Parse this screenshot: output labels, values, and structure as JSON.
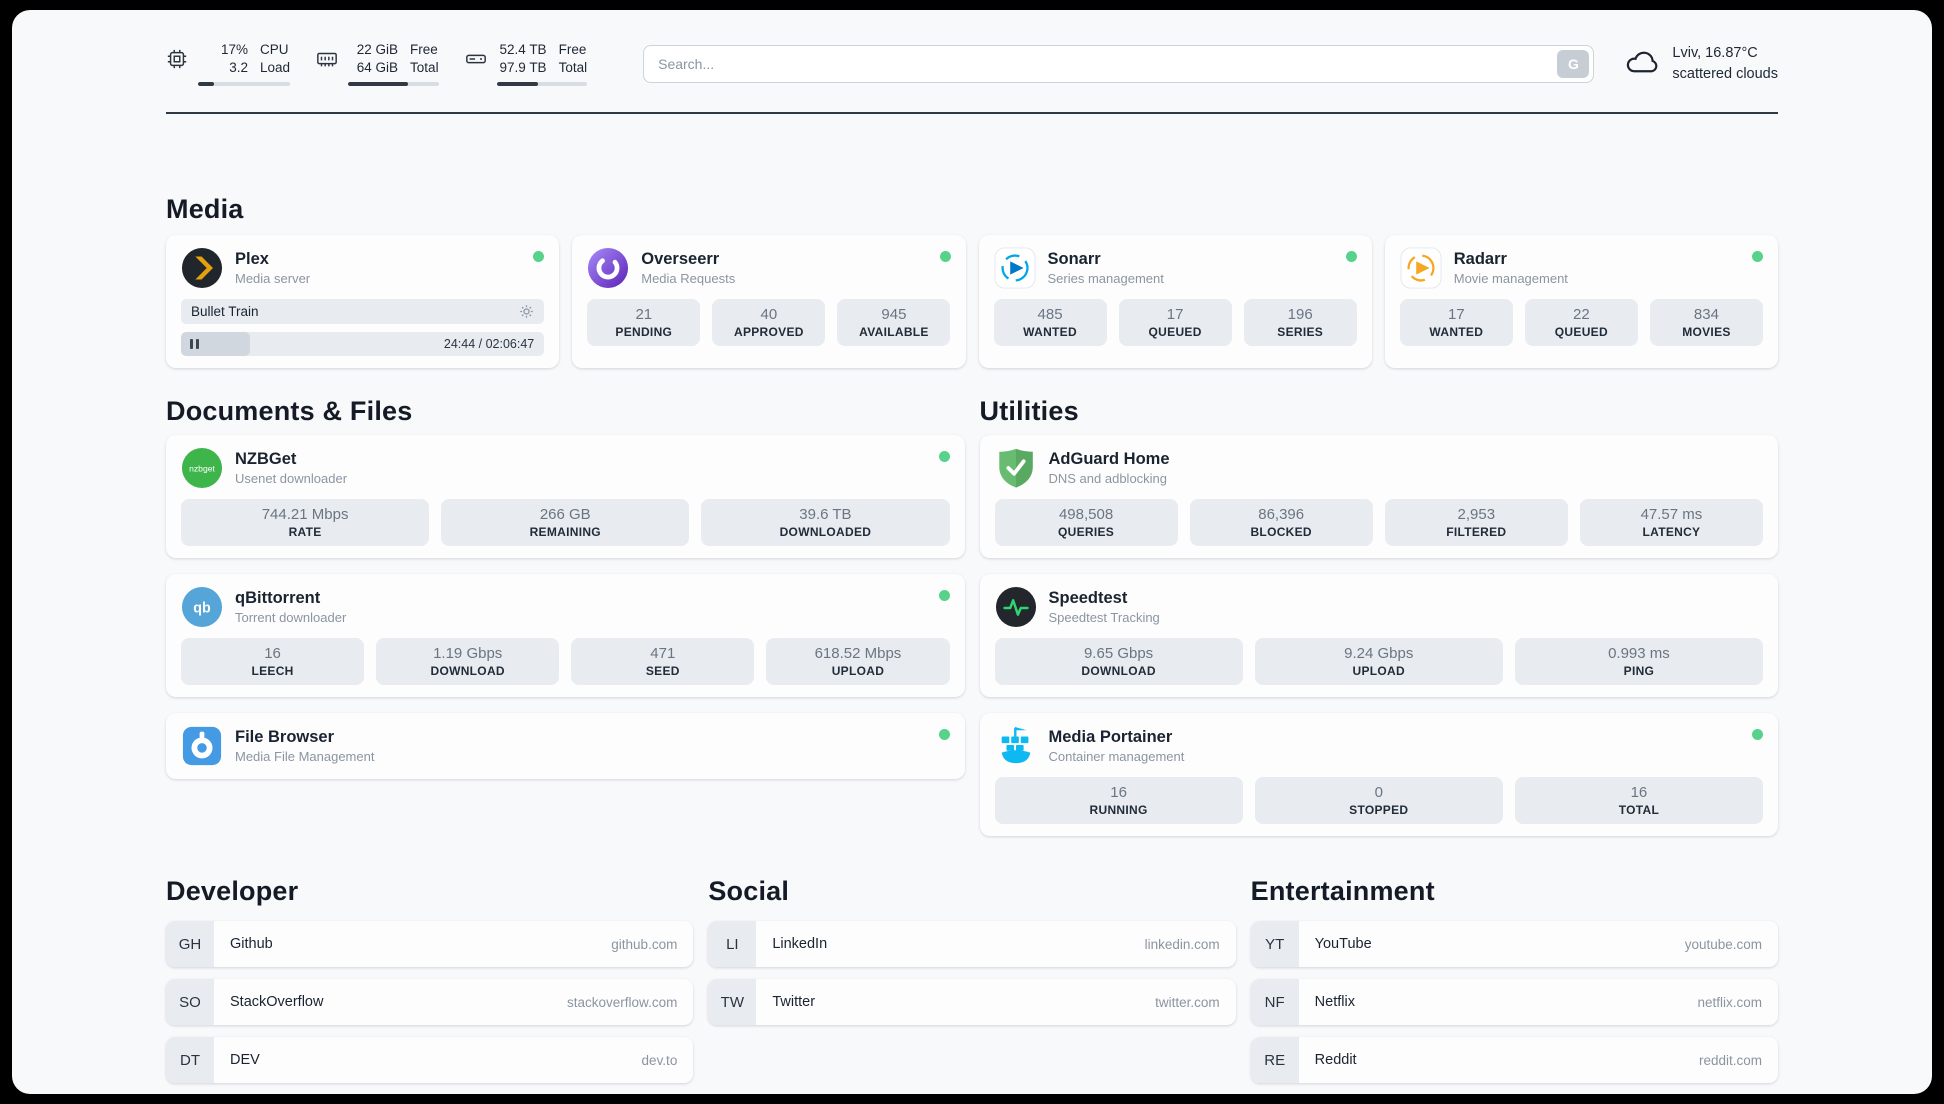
{
  "header": {
    "cpu": {
      "values": [
        "17%",
        "3.2"
      ],
      "labels": [
        "CPU",
        "Load"
      ],
      "percent": 17
    },
    "ram": {
      "values": [
        "22 GiB",
        "64 GiB"
      ],
      "labels": [
        "Free",
        "Total"
      ],
      "percent": 66
    },
    "disk": {
      "values": [
        "52.4 TB",
        "97.9 TB"
      ],
      "labels": [
        "Free",
        "Total"
      ],
      "percent": 46
    },
    "search": {
      "placeholder": "Search...",
      "button_label": "G"
    },
    "weather": {
      "location": "Lviv, 16.87°C",
      "condition": "scattered clouds"
    }
  },
  "sections": {
    "media": {
      "title": "Media",
      "apps": [
        {
          "name": "Plex",
          "subtitle": "Media server",
          "online": true,
          "now_playing": "Bullet Train",
          "time": "24:44 / 02:06:47",
          "progress_percent": 19
        },
        {
          "name": "Overseerr",
          "subtitle": "Media Requests",
          "online": true,
          "stats": [
            {
              "value": "21",
              "label": "PENDING"
            },
            {
              "value": "40",
              "label": "APPROVED"
            },
            {
              "value": "945",
              "label": "AVAILABLE"
            }
          ]
        },
        {
          "name": "Sonarr",
          "subtitle": "Series management",
          "online": true,
          "stats": [
            {
              "value": "485",
              "label": "WANTED"
            },
            {
              "value": "17",
              "label": "QUEUED"
            },
            {
              "value": "196",
              "label": "SERIES"
            }
          ]
        },
        {
          "name": "Radarr",
          "subtitle": "Movie management",
          "online": true,
          "stats": [
            {
              "value": "17",
              "label": "WANTED"
            },
            {
              "value": "22",
              "label": "QUEUED"
            },
            {
              "value": "834",
              "label": "MOVIES"
            }
          ]
        }
      ]
    },
    "documents": {
      "title": "Documents & Files",
      "apps": [
        {
          "name": "NZBGet",
          "subtitle": "Usenet downloader",
          "online": true,
          "stats": [
            {
              "value": "744.21 Mbps",
              "label": "RATE"
            },
            {
              "value": "266 GB",
              "label": "REMAINING"
            },
            {
              "value": "39.6 TB",
              "label": "DOWNLOADED"
            }
          ]
        },
        {
          "name": "qBittorrent",
          "subtitle": "Torrent downloader",
          "online": true,
          "stats": [
            {
              "value": "16",
              "label": "LEECH"
            },
            {
              "value": "1.19 Gbps",
              "label": "DOWNLOAD"
            },
            {
              "value": "471",
              "label": "SEED"
            },
            {
              "value": "618.52 Mbps",
              "label": "UPLOAD"
            }
          ]
        },
        {
          "name": "File Browser",
          "subtitle": "Media File Management",
          "online": true
        }
      ]
    },
    "utilities": {
      "title": "Utilities",
      "apps": [
        {
          "name": "AdGuard Home",
          "subtitle": "DNS and adblocking",
          "stats": [
            {
              "value": "498,508",
              "label": "QUERIES"
            },
            {
              "value": "86,396",
              "label": "BLOCKED"
            },
            {
              "value": "2,953",
              "label": "FILTERED"
            },
            {
              "value": "47.57 ms",
              "label": "LATENCY"
            }
          ]
        },
        {
          "name": "Speedtest",
          "subtitle": "Speedtest Tracking",
          "stats": [
            {
              "value": "9.65 Gbps",
              "label": "DOWNLOAD"
            },
            {
              "value": "9.24 Gbps",
              "label": "UPLOAD"
            },
            {
              "value": "0.993 ms",
              "label": "PING"
            }
          ]
        },
        {
          "name": "Media Portainer",
          "subtitle": "Container management",
          "online": true,
          "stats": [
            {
              "value": "16",
              "label": "RUNNING"
            },
            {
              "value": "0",
              "label": "STOPPED"
            },
            {
              "value": "16",
              "label": "TOTAL"
            }
          ]
        }
      ]
    },
    "developer": {
      "title": "Developer",
      "links": [
        {
          "abbr": "GH",
          "name": "Github",
          "url": "github.com"
        },
        {
          "abbr": "SO",
          "name": "StackOverflow",
          "url": "stackoverflow.com"
        },
        {
          "abbr": "DT",
          "name": "DEV",
          "url": "dev.to"
        }
      ]
    },
    "social": {
      "title": "Social",
      "links": [
        {
          "abbr": "LI",
          "name": "LinkedIn",
          "url": "linkedin.com"
        },
        {
          "abbr": "TW",
          "name": "Twitter",
          "url": "twitter.com"
        }
      ]
    },
    "entertainment": {
      "title": "Entertainment",
      "links": [
        {
          "abbr": "YT",
          "name": "YouTube",
          "url": "youtube.com"
        },
        {
          "abbr": "NF",
          "name": "Netflix",
          "url": "netflix.com"
        },
        {
          "abbr": "RE",
          "name": "Reddit",
          "url": "reddit.com"
        }
      ]
    }
  },
  "colors": {
    "status_online": "#56d28b",
    "panel_background": "#f8f9fb",
    "tile_background": "#e8ecf1",
    "plex_accent": "#e5a00d"
  }
}
